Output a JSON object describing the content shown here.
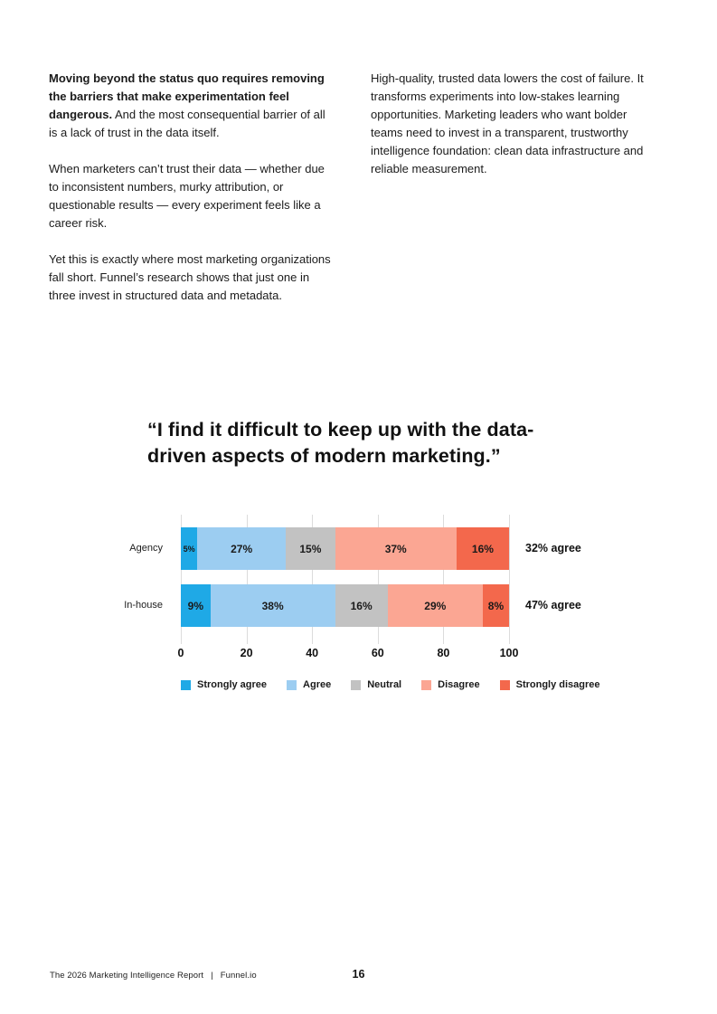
{
  "columns": {
    "left": {
      "lead_bold": "Moving beyond the status quo requires removing the barriers that make experimentation feel dangerous.",
      "lead_rest": " And the most consequential barrier of all is a lack of trust in the data itself.",
      "paragraph_2": "When marketers can’t trust their data — whether due to inconsistent numbers, murky attribution, or questionable results — every experiment feels like a career risk.",
      "paragraph_3": "Yet this is exactly where most marketing organizations fall short. Funnel’s research shows that just one in three invest in structured data and metadata."
    },
    "right": {
      "paragraph_1": "High-quality, trusted data lowers the cost of failure. It transforms experiments into low-stakes learning opportunities. Marketing leaders who want bolder teams need to invest in a transparent, trustworthy intelligence foundation: clean data infrastructure and reliable measurement."
    }
  },
  "quote": {
    "line_1": "“I find it difficult to keep up with the data-",
    "line_2": "driven aspects of modern marketing.”"
  },
  "chart_data": {
    "type": "bar",
    "orientation": "horizontal",
    "stacked": true,
    "title": "“I find it difficult to keep up with the data-driven aspects of modern marketing.”",
    "categories": [
      "Agency",
      "In-house"
    ],
    "series": [
      {
        "name": "Strongly agree",
        "color": "#1FA9E6",
        "values": [
          5,
          9
        ]
      },
      {
        "name": "Agree",
        "color": "#9CCDF1",
        "values": [
          27,
          38
        ]
      },
      {
        "name": "Neutral",
        "color": "#C2C2C2",
        "values": [
          15,
          16
        ]
      },
      {
        "name": "Disagree",
        "color": "#FBA693",
        "values": [
          37,
          29
        ]
      },
      {
        "name": "Strongly disagree",
        "color": "#F3684C",
        "values": [
          16,
          8
        ]
      }
    ],
    "annotations": [
      "32% agree",
      "47% agree"
    ],
    "x_ticks": [
      0,
      20,
      40,
      60,
      80,
      100
    ],
    "xlim": [
      0,
      100
    ],
    "value_suffix": "%",
    "grid": true,
    "gridline_color": "#dcdcdc",
    "legend_position": "bottom"
  },
  "footer": {
    "report_title": "The 2026 Marketing Intelligence Report",
    "separator": "|",
    "brand": "Funnel.io",
    "page_number": "16"
  }
}
